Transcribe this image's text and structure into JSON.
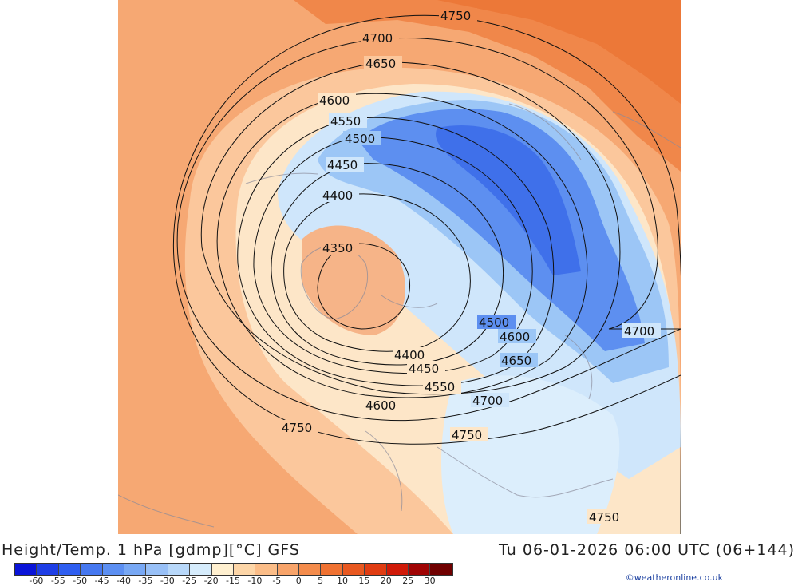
{
  "title": "Height/Temp. 1 hPa [gdmp][°C] GFS",
  "timestamp": "Tu 06-01-2026 06:00 UTC (06+144)",
  "credit": "©weatheronline.co.uk",
  "colorbar": {
    "labels": [
      "-60",
      "-55",
      "-50",
      "-45",
      "-40",
      "-35",
      "-30",
      "-25",
      "-20",
      "-15",
      "-10",
      "-5",
      "0",
      "5",
      "10",
      "15",
      "20",
      "25",
      "30"
    ],
    "colors": [
      "#0a14d8",
      "#1e3ee6",
      "#2f5ef0",
      "#4678f0",
      "#5c8ff2",
      "#78a8f4",
      "#98c0f7",
      "#b8d8fa",
      "#d6ecfc",
      "#fff0d0",
      "#fdd6a8",
      "#fbbd88",
      "#f8a46a",
      "#f48c4c",
      "#f07232",
      "#e85820",
      "#e03c12",
      "#d01a08",
      "#a00404",
      "#700000"
    ]
  },
  "contours": [
    {
      "label": "4750"
    },
    {
      "label": "4700"
    },
    {
      "label": "4650"
    },
    {
      "label": "4600"
    },
    {
      "label": "4550"
    },
    {
      "label": "4500"
    },
    {
      "label": "4450"
    },
    {
      "label": "4400"
    },
    {
      "label": "4350"
    }
  ],
  "map_labels": {
    "l4750a": "4750",
    "l4700a": "4700",
    "l4650a": "4650",
    "l4600a": "4600",
    "l4550a": "4550",
    "l4500a": "4500",
    "l4450a": "4450",
    "l4400a": "4400",
    "l4350": "4350",
    "l4500b": "4500",
    "l4600b": "4600",
    "l4700b": "4700",
    "l4650b": "4650",
    "l4400b": "4400",
    "l4450b": "4450",
    "l4550b": "4550",
    "l4700c": "4700",
    "l4600c": "4600",
    "l4750b": "4750",
    "l4750c": "4750",
    "l4750d": "4750"
  }
}
